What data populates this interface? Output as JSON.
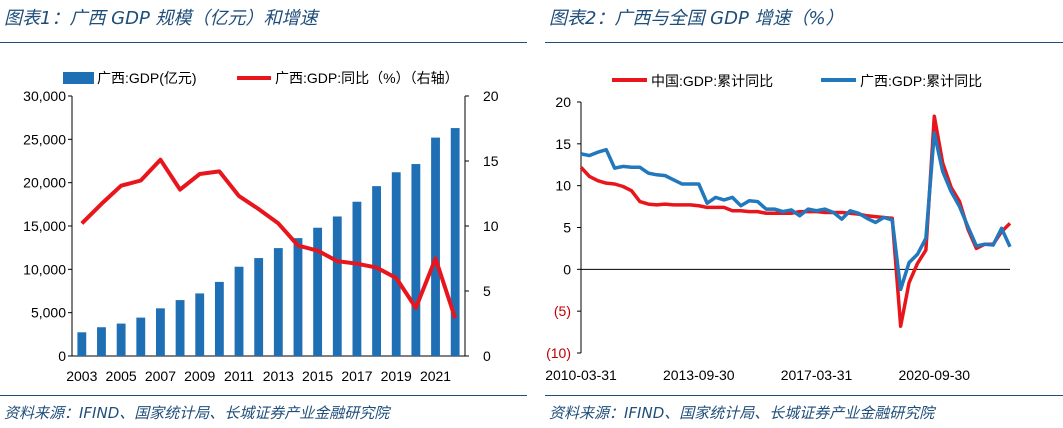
{
  "left": {
    "title": "图表1：广西 GDP 规模（亿元）和增速",
    "source": "资料来源：IFIND、国家统计局、长城证券产业金融研究院"
  },
  "right": {
    "title": "图表2：广西与全国 GDP 增速（%）",
    "source": "资料来源：IFIND、国家统计局、长城证券产业金融研究院"
  },
  "colors": {
    "bar": "#1f6fb5",
    "red": "#e8161c",
    "blue": "#2178bd",
    "header": "#1f4e79",
    "text": "#000000",
    "neg": "#c00000"
  },
  "chart_data": [
    {
      "type": "bar",
      "title": "广西 GDP 规模（亿元）和增速",
      "categories": [
        "2003",
        "2004",
        "2005",
        "2006",
        "2007",
        "2008",
        "2009",
        "2010",
        "2011",
        "2012",
        "2013",
        "2014",
        "2015",
        "2016",
        "2017",
        "2018",
        "2019",
        "2020",
        "2021",
        "2022"
      ],
      "x_tick_labels": [
        "2003",
        "2005",
        "2007",
        "2009",
        "2011",
        "2013",
        "2015",
        "2017",
        "2019",
        "2021"
      ],
      "series": [
        {
          "name": "广西:GDP(亿元)",
          "kind": "bar",
          "axis": "left",
          "values": [
            2735,
            3320,
            3740,
            4430,
            5500,
            6450,
            7220,
            8550,
            10300,
            11300,
            12450,
            13600,
            14800,
            16100,
            17800,
            19600,
            21200,
            22150,
            25200,
            26300
          ]
        },
        {
          "name": "广西:GDP:同比（%）（右轴）",
          "kind": "line",
          "axis": "right",
          "values": [
            10.2,
            11.7,
            13.1,
            13.5,
            15.1,
            12.8,
            14.0,
            14.2,
            12.3,
            11.3,
            10.2,
            8.5,
            8.1,
            7.3,
            7.1,
            6.8,
            6.0,
            3.7,
            7.5,
            2.9
          ]
        }
      ],
      "y_left": {
        "lim": [
          0,
          30000
        ],
        "ticks": [
          0,
          5000,
          10000,
          15000,
          20000,
          25000,
          30000
        ],
        "tick_labels": [
          "0",
          "5,000",
          "10,000",
          "15,000",
          "20,000",
          "25,000",
          "30,000"
        ]
      },
      "y_right": {
        "lim": [
          0,
          20
        ],
        "ticks": [
          0,
          5,
          10,
          15,
          20
        ],
        "tick_labels": [
          "0",
          "5",
          "10",
          "15",
          "20"
        ]
      },
      "legend": [
        "广西:GDP(亿元)",
        "广西:GDP:同比（%）（右轴）"
      ],
      "legend_position": "top"
    },
    {
      "type": "line",
      "title": "广西与全国 GDP 增速（%）",
      "x_tick_labels": [
        "2010-03-31",
        "2013-09-30",
        "2017-03-31",
        "2020-09-30"
      ],
      "x_tick_index": [
        0,
        14,
        28,
        42
      ],
      "series": [
        {
          "name": "中国:GDP:累计同比",
          "values": [
            12.2,
            11.1,
            10.6,
            10.3,
            10.2,
            9.9,
            9.4,
            8.1,
            7.8,
            7.7,
            7.8,
            7.7,
            7.7,
            7.7,
            7.6,
            7.4,
            7.4,
            7.4,
            7.0,
            7.0,
            6.9,
            6.9,
            6.7,
            6.7,
            6.7,
            6.7,
            6.9,
            6.9,
            6.9,
            6.8,
            6.8,
            6.8,
            6.7,
            6.6,
            6.4,
            6.3,
            6.2,
            6.1,
            -6.8,
            -1.6,
            0.7,
            2.3,
            18.3,
            12.7,
            9.8,
            8.1,
            4.8,
            2.5,
            3.0,
            3.0,
            4.5,
            5.5
          ]
        },
        {
          "name": "广西:GDP:累计同比",
          "values": [
            13.8,
            13.6,
            14.0,
            14.3,
            12.1,
            12.3,
            12.2,
            12.2,
            11.5,
            11.3,
            11.2,
            10.7,
            10.2,
            10.2,
            10.2,
            7.9,
            8.6,
            8.3,
            8.6,
            7.6,
            8.2,
            8.1,
            7.2,
            7.2,
            6.9,
            7.1,
            6.4,
            7.2,
            7.0,
            7.2,
            6.8,
            6.0,
            7.0,
            6.7,
            6.1,
            5.6,
            6.2,
            5.9,
            -2.4,
            0.8,
            1.8,
            3.7,
            16.3,
            11.7,
            9.3,
            7.5,
            5.1,
            2.8,
            3.0,
            2.9,
            4.9,
            2.7
          ]
        }
      ],
      "y": {
        "lim": [
          -10,
          20
        ],
        "ticks": [
          -10,
          -5,
          0,
          5,
          10,
          15,
          20
        ],
        "tick_labels": [
          "(10)",
          "(5)",
          "0",
          "5",
          "10",
          "15",
          "20"
        ]
      },
      "legend": [
        "中国:GDP:累计同比",
        "广西:GDP:累计同比"
      ],
      "legend_position": "top"
    }
  ]
}
